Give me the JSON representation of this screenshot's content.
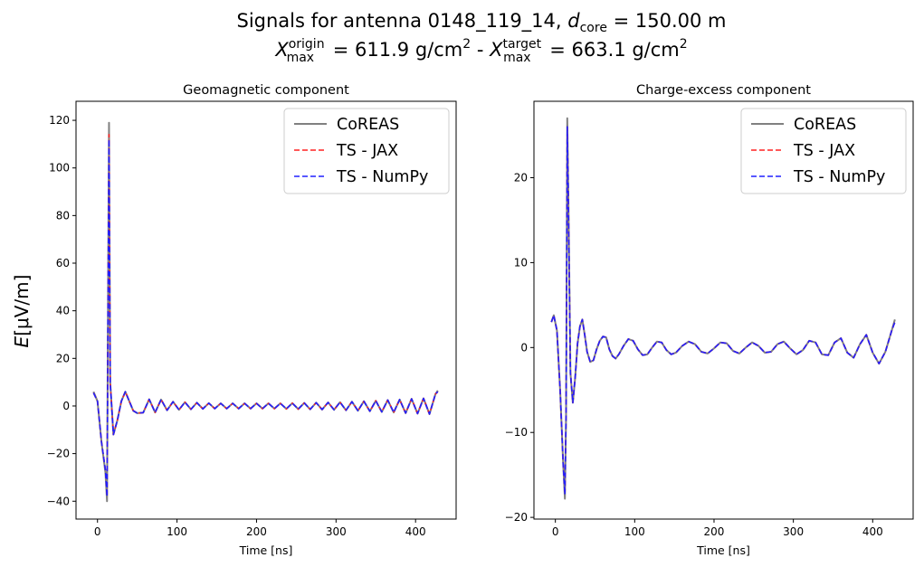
{
  "figure": {
    "title_prefix": "Signals for antenna 0148_119_14, ",
    "title_dcore_symbol": "d",
    "title_dcore_sub": "core",
    "title_dcore_value": " = 150.00 m",
    "title_x": "X",
    "title_max": "max",
    "title_origin": "origin",
    "title_origin_value": " =  611.9 g/cm",
    "title_exp": "2",
    "title_sep": " -  ",
    "title_target": "target",
    "title_target_value": " =  663.1 g/cm",
    "ylabel_e": "E",
    "ylabel_rest": "[μV/m]"
  },
  "colors": {
    "coreas": "#808080",
    "jax": "#ff2020",
    "numpy": "#2020ff"
  },
  "chart_data": [
    {
      "type": "line",
      "title": "Geomagnetic component",
      "xlabel": "Time [ns]",
      "xlim": [
        -27,
        451
      ],
      "ylim": [
        -47.5,
        128
      ],
      "xticks": [
        0,
        100,
        200,
        300,
        400
      ],
      "yticks": [
        -40,
        -20,
        0,
        20,
        40,
        60,
        80,
        100,
        120
      ],
      "legend": "top-right",
      "series": [
        {
          "name": "CoREAS",
          "style": "solid",
          "x": [
            -5,
            0,
            5,
            10,
            12,
            13.5,
            14.5,
            16,
            20,
            25,
            30,
            35,
            40,
            45,
            50,
            57.5,
            65,
            72.5,
            80,
            87.5,
            95,
            102.5,
            110,
            117.5,
            125,
            132.5,
            140,
            147.5,
            155,
            162.5,
            170,
            177.5,
            185,
            192.5,
            200,
            207.5,
            215,
            222.5,
            230,
            237.5,
            245,
            252.5,
            260,
            267.5,
            275,
            282.5,
            290,
            297.5,
            305,
            312.5,
            320,
            327.5,
            335,
            342.5,
            350,
            357.5,
            365,
            372.5,
            380,
            387.5,
            395,
            402.5,
            410,
            417.5,
            425,
            428
          ],
          "values": [
            6,
            2,
            -15,
            -28,
            -40,
            60,
            119,
            10,
            -12,
            -6,
            2,
            6,
            2,
            -2,
            -3,
            -2.8,
            2.8,
            -2.7,
            2.7,
            -1.8,
            1.8,
            -1.6,
            1.6,
            -1.4,
            1.4,
            -1.2,
            1.2,
            -1.1,
            1.1,
            -1.1,
            1.1,
            -1.1,
            1.1,
            -1.1,
            1.1,
            -1.1,
            1.1,
            -1.1,
            1.1,
            -1.2,
            1.2,
            -1.3,
            1.3,
            -1.4,
            1.4,
            -1.5,
            1.5,
            -1.6,
            1.6,
            -1.8,
            1.8,
            -2,
            2,
            -2.2,
            2.2,
            -2.5,
            2.5,
            -2.7,
            2.7,
            -3,
            3,
            -3.2,
            3.2,
            -3.4,
            5,
            6.5
          ]
        },
        {
          "name": "TS - JAX",
          "style": "dashed",
          "x": [
            -5,
            0,
            5,
            10,
            12,
            13.5,
            14.5,
            16,
            20,
            25,
            30,
            35,
            40,
            45,
            50,
            57.5,
            65,
            72.5,
            80,
            87.5,
            95,
            102.5,
            110,
            117.5,
            125,
            132.5,
            140,
            147.5,
            155,
            162.5,
            170,
            177.5,
            185,
            192.5,
            200,
            207.5,
            215,
            222.5,
            230,
            237.5,
            245,
            252.5,
            260,
            267.5,
            275,
            282.5,
            290,
            297.5,
            305,
            312.5,
            320,
            327.5,
            335,
            342.5,
            350,
            357.5,
            365,
            372.5,
            380,
            387.5,
            395,
            402.5,
            410,
            417.5,
            425,
            428
          ],
          "values": [
            5.5,
            2,
            -15,
            -27,
            -38,
            57,
            114,
            10,
            -12,
            -6,
            2,
            6,
            2,
            -2,
            -3,
            -2.8,
            2.8,
            -2.7,
            2.7,
            -1.8,
            1.8,
            -1.6,
            1.6,
            -1.4,
            1.4,
            -1.2,
            1.2,
            -1.1,
            1.1,
            -1.1,
            1.1,
            -1.1,
            1.1,
            -1.1,
            1.1,
            -1.1,
            1.1,
            -1.1,
            1.1,
            -1.2,
            1.2,
            -1.3,
            1.3,
            -1.4,
            1.4,
            -1.5,
            1.5,
            -1.6,
            1.6,
            -1.8,
            1.8,
            -2,
            2,
            -2.2,
            2.2,
            -2.5,
            2.5,
            -2.7,
            2.7,
            -3,
            3,
            -3.2,
            3.2,
            -3.4,
            5,
            6
          ]
        },
        {
          "name": "TS - NumPy",
          "style": "dashed",
          "x": [
            -5,
            0,
            5,
            10,
            12,
            13.5,
            14.5,
            16,
            20,
            25,
            30,
            35,
            40,
            45,
            50,
            57.5,
            65,
            72.5,
            80,
            87.5,
            95,
            102.5,
            110,
            117.5,
            125,
            132.5,
            140,
            147.5,
            155,
            162.5,
            170,
            177.5,
            185,
            192.5,
            200,
            207.5,
            215,
            222.5,
            230,
            237.5,
            245,
            252.5,
            260,
            267.5,
            275,
            282.5,
            290,
            297.5,
            305,
            312.5,
            320,
            327.5,
            335,
            342.5,
            350,
            357.5,
            365,
            372.5,
            380,
            387.5,
            395,
            402.5,
            410,
            417.5,
            425,
            428
          ],
          "values": [
            5.5,
            2,
            -15,
            -27,
            -38,
            56,
            112,
            10,
            -12,
            -6,
            2,
            6,
            2,
            -2,
            -3,
            -2.8,
            2.8,
            -2.7,
            2.7,
            -1.8,
            1.8,
            -1.6,
            1.6,
            -1.4,
            1.4,
            -1.2,
            1.2,
            -1.1,
            1.1,
            -1.1,
            1.1,
            -1.1,
            1.1,
            -1.1,
            1.1,
            -1.1,
            1.1,
            -1.1,
            1.1,
            -1.2,
            1.2,
            -1.3,
            1.3,
            -1.4,
            1.4,
            -1.5,
            1.5,
            -1.6,
            1.6,
            -1.8,
            1.8,
            -2,
            2,
            -2.2,
            2.2,
            -2.5,
            2.5,
            -2.7,
            2.7,
            -3,
            3,
            -3.2,
            3.2,
            -3.4,
            5,
            6
          ]
        }
      ]
    },
    {
      "type": "line",
      "title": "Charge-excess component",
      "xlabel": "Time [ns]",
      "xlim": [
        -27,
        451
      ],
      "ylim": [
        -20.2,
        29
      ],
      "xticks": [
        0,
        100,
        200,
        300,
        400
      ],
      "yticks": [
        -20,
        -10,
        0,
        10,
        20
      ],
      "legend": "top-right",
      "series": [
        {
          "name": "CoREAS",
          "style": "solid",
          "x": [
            -5,
            -2,
            2,
            6,
            10,
            12,
            13.5,
            15,
            16.5,
            19,
            22,
            25,
            28,
            31,
            34,
            37,
            40,
            44,
            48,
            52,
            56,
            60,
            64,
            68,
            72,
            76,
            80,
            86,
            92,
            98,
            104,
            110,
            116,
            122,
            128,
            134,
            140,
            146,
            152,
            160,
            168,
            176,
            184,
            192,
            200,
            208,
            216,
            224,
            232,
            240,
            248,
            256,
            264,
            272,
            280,
            288,
            296,
            304,
            312,
            320,
            328,
            336,
            344,
            352,
            360,
            368,
            376,
            384,
            392,
            400,
            408,
            416,
            424,
            428
          ],
          "values": [
            3,
            3.8,
            2,
            -5,
            -14,
            -17.8,
            -8,
            27,
            17,
            -3,
            -6.5,
            -3.5,
            0.5,
            2.5,
            3.3,
            1.5,
            -0.5,
            -1.7,
            -1.5,
            -0.2,
            0.8,
            1.3,
            1.2,
            -0.2,
            -1,
            -1.3,
            -0.8,
            0.2,
            1,
            0.8,
            -0.2,
            -0.9,
            -0.8,
            0,
            0.7,
            0.6,
            -0.3,
            -0.8,
            -0.6,
            0.2,
            0.7,
            0.4,
            -0.5,
            -0.7,
            -0.1,
            0.6,
            0.5,
            -0.4,
            -0.7,
            0,
            0.6,
            0.2,
            -0.6,
            -0.5,
            0.4,
            0.7,
            -0.1,
            -0.8,
            -0.3,
            0.8,
            0.6,
            -0.8,
            -0.9,
            0.6,
            1.1,
            -0.6,
            -1.2,
            0.4,
            1.5,
            -0.6,
            -1.9,
            -0.5,
            2,
            3.3
          ]
        },
        {
          "name": "TS - JAX",
          "style": "dashed",
          "x": [
            -5,
            -2,
            2,
            6,
            10,
            12,
            13.5,
            15,
            16.5,
            19,
            22,
            25,
            28,
            31,
            34,
            37,
            40,
            44,
            48,
            52,
            56,
            60,
            64,
            68,
            72,
            76,
            80,
            86,
            92,
            98,
            104,
            110,
            116,
            122,
            128,
            134,
            140,
            146,
            152,
            160,
            168,
            176,
            184,
            192,
            200,
            208,
            216,
            224,
            232,
            240,
            248,
            256,
            264,
            272,
            280,
            288,
            296,
            304,
            312,
            320,
            328,
            336,
            344,
            352,
            360,
            368,
            376,
            384,
            392,
            400,
            408,
            416,
            424,
            428
          ],
          "values": [
            3,
            3.8,
            2,
            -5,
            -14,
            -17.3,
            -8,
            26,
            16.5,
            -3,
            -6.5,
            -3.5,
            0.5,
            2.5,
            3.3,
            1.5,
            -0.5,
            -1.7,
            -1.5,
            -0.2,
            0.8,
            1.3,
            1.2,
            -0.2,
            -1,
            -1.3,
            -0.8,
            0.2,
            1,
            0.8,
            -0.2,
            -0.9,
            -0.8,
            0,
            0.7,
            0.6,
            -0.3,
            -0.8,
            -0.6,
            0.2,
            0.7,
            0.4,
            -0.5,
            -0.7,
            -0.1,
            0.6,
            0.5,
            -0.4,
            -0.7,
            0,
            0.6,
            0.2,
            -0.6,
            -0.5,
            0.4,
            0.7,
            -0.1,
            -0.8,
            -0.3,
            0.8,
            0.6,
            -0.8,
            -0.9,
            0.6,
            1.1,
            -0.6,
            -1.2,
            0.4,
            1.5,
            -0.6,
            -1.9,
            -0.5,
            2,
            3
          ]
        },
        {
          "name": "TS - NumPy",
          "style": "dashed",
          "x": [
            -5,
            -2,
            2,
            6,
            10,
            12,
            13.5,
            15,
            16.5,
            19,
            22,
            25,
            28,
            31,
            34,
            37,
            40,
            44,
            48,
            52,
            56,
            60,
            64,
            68,
            72,
            76,
            80,
            86,
            92,
            98,
            104,
            110,
            116,
            122,
            128,
            134,
            140,
            146,
            152,
            160,
            168,
            176,
            184,
            192,
            200,
            208,
            216,
            224,
            232,
            240,
            248,
            256,
            264,
            272,
            280,
            288,
            296,
            304,
            312,
            320,
            328,
            336,
            344,
            352,
            360,
            368,
            376,
            384,
            392,
            400,
            408,
            416,
            424,
            428
          ],
          "values": [
            3,
            3.8,
            2,
            -5,
            -14,
            -17.3,
            -8,
            26,
            16.5,
            -3,
            -6.5,
            -3.5,
            0.5,
            2.5,
            3.3,
            1.5,
            -0.5,
            -1.7,
            -1.5,
            -0.2,
            0.8,
            1.3,
            1.2,
            -0.2,
            -1,
            -1.3,
            -0.8,
            0.2,
            1,
            0.8,
            -0.2,
            -0.9,
            -0.8,
            0,
            0.7,
            0.6,
            -0.3,
            -0.8,
            -0.6,
            0.2,
            0.7,
            0.4,
            -0.5,
            -0.7,
            -0.1,
            0.6,
            0.5,
            -0.4,
            -0.7,
            0,
            0.6,
            0.2,
            -0.6,
            -0.5,
            0.4,
            0.7,
            -0.1,
            -0.8,
            -0.3,
            0.8,
            0.6,
            -0.8,
            -0.9,
            0.6,
            1.1,
            -0.6,
            -1.2,
            0.4,
            1.5,
            -0.6,
            -1.9,
            -0.5,
            2,
            3
          ]
        }
      ]
    }
  ]
}
